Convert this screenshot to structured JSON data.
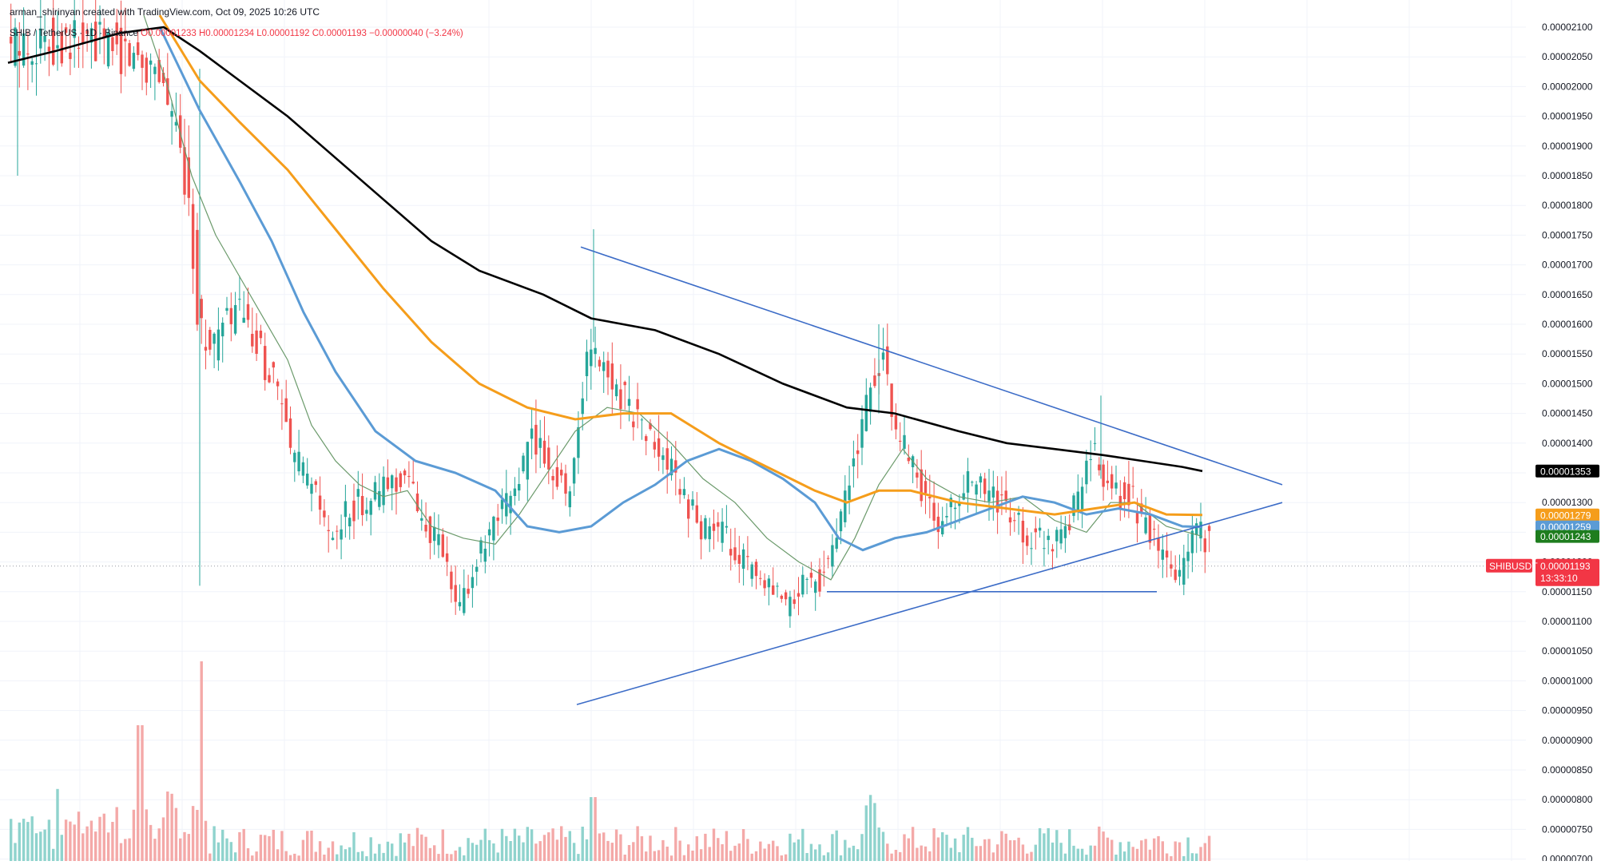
{
  "header": {
    "created_line": "arman_shirinyan created with TradingView.com, Oct 09, 2025 10:26 UTC",
    "symbol_line": "SHIB / TetherUS · 1D · Binance",
    "ohlc_line": "O0.00001233 H0.00001234 L0.00001192 C0.00001193 −0.00000040 (−3.24%)"
  },
  "colors": {
    "up": "#26a69a",
    "down": "#ef5350",
    "vol_up": "#8fd3cd",
    "vol_down": "#f4a9a8",
    "ma_black": "#000000",
    "ma_orange": "#f59d1b",
    "ma_blue": "#5b9bd5",
    "ma_green": "#6b9a6b",
    "trendline": "#3c6cc7",
    "grid": "#f0f3fa"
  },
  "price_axis": {
    "tick_labels": [
      "0.00002100",
      "0.00002050",
      "0.00002000",
      "0.00001950",
      "0.00001900",
      "0.00001850",
      "0.00001800",
      "0.00001750",
      "0.00001700",
      "0.00001650",
      "0.00001600",
      "0.00001550",
      "0.00001500",
      "0.00001450",
      "0.00001400",
      "0.00001350",
      "0.00001300",
      "0.00001250",
      "0.00001200",
      "0.00001150",
      "0.00001100",
      "0.00001050",
      "0.00001000",
      "0.00000950",
      "0.00000900",
      "0.00000850",
      "0.00000800",
      "0.00000750",
      "0.00000700"
    ]
  },
  "badges": {
    "ma_black": {
      "value": "0.00001353",
      "color": "#000000"
    },
    "ma_orange": {
      "value": "0.00001279",
      "color": "#f59d1b"
    },
    "ma_blue": {
      "value": "0.00001259",
      "color": "#5b9bd5"
    },
    "ma_green": {
      "value": "0.00001243",
      "color": "#1e7d1e"
    },
    "symbol": "SHIBUSDT",
    "last_price": "0.00001193",
    "countdown": "13:33:10",
    "last_color": "#f23645"
  },
  "chart_data": {
    "type": "candlestick",
    "symbol": "SHIB / TetherUS",
    "timeframe": "1D",
    "exchange": "Binance",
    "ylim": [
      7e-06,
      2.1e-05
    ],
    "last_close": 1.193e-05,
    "moving_averages": {
      "ma_black_last": 1.353e-05,
      "ma_orange_last": 1.279e-05,
      "ma_blue_last": 1.259e-05,
      "ma_green_last": 1.243e-05
    },
    "pattern": "symmetrical triangle with horizontal support near 0.00001150"
  }
}
